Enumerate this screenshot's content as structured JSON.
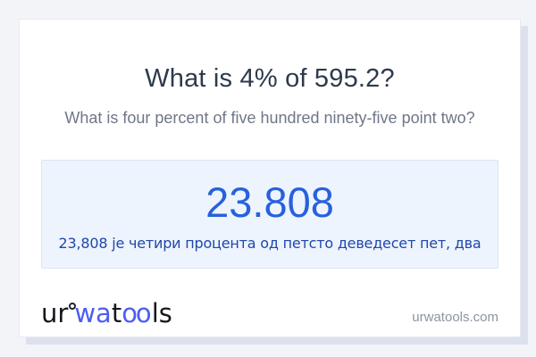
{
  "question": {
    "title": "What is 4% of 595.2?",
    "subtitle": "What is four percent of five hundred ninety-five point two?"
  },
  "answer": {
    "value": "23.808",
    "sentence": "23,808 је четири процента од петсто деведесет пет, два"
  },
  "footer": {
    "logo": {
      "part1": "ur",
      "part2": "wa",
      "part3": "t",
      "part4": "oo",
      "part5": "ls"
    },
    "domain": "urwatools.com"
  },
  "colors": {
    "page_background": "#f3f4f8",
    "card_background": "#ffffff",
    "card_shadow": "#dde1ee",
    "answer_box_background": "#eef4fd",
    "answer_box_border": "#d9e5f4",
    "title_text": "#2d3a4d",
    "subtitle_text": "#6e7787",
    "answer_value_text": "#2761dd",
    "answer_sentence_text": "#1f47ab",
    "logo_black": "#17181d",
    "logo_blue": "#4c5ef0",
    "domain_text": "#8c94a2"
  }
}
